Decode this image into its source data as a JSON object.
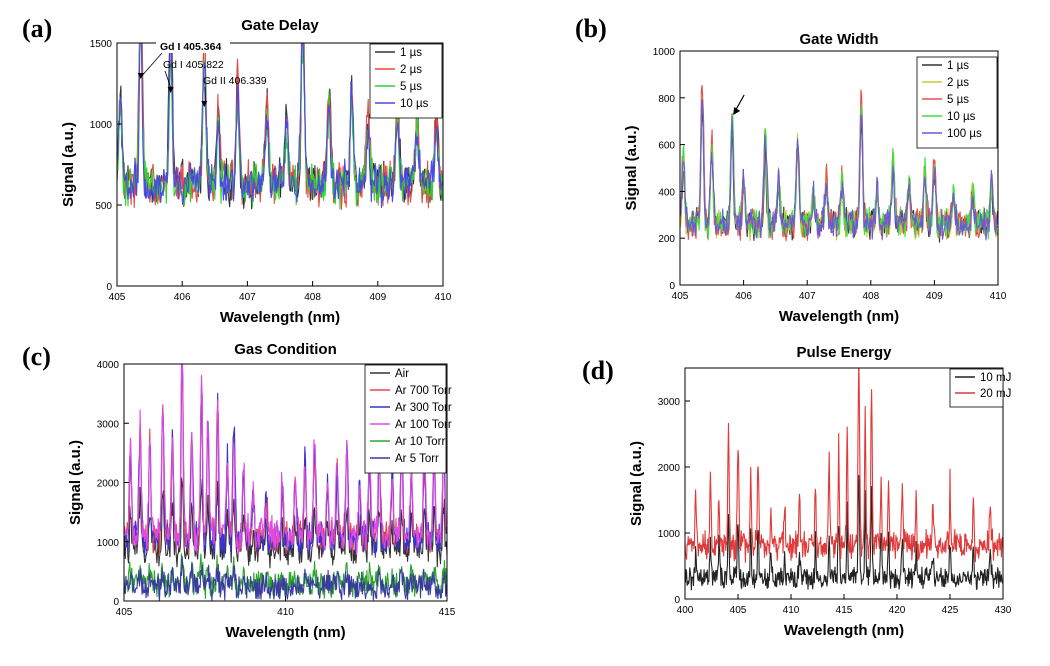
{
  "chart_data": [
    {
      "type": "line",
      "panel": "(a)",
      "title": "Gate Delay",
      "xlabel": "Wavelength (nm)",
      "ylabel": "Signal (a.u.)",
      "xlim": [
        405,
        410
      ],
      "ylim": [
        0,
        1500
      ],
      "xticks": [
        405,
        406,
        407,
        408,
        409,
        410
      ],
      "yticks": [
        0,
        500,
        1000,
        1500
      ],
      "baseline_norm": 0.42,
      "noise": 0.045,
      "width": 0.035,
      "sample_step": 0.012,
      "legend_position": "top-right",
      "peaks": [
        405.05,
        405.364,
        405.822,
        406.339,
        406.55,
        406.85,
        407.3,
        407.6,
        407.85,
        408.25,
        408.6,
        408.85,
        409.3,
        409.6,
        409.9
      ],
      "peak_amps": [
        0.4,
        0.9,
        0.72,
        0.65,
        0.3,
        0.45,
        0.35,
        0.3,
        0.82,
        0.4,
        0.45,
        0.3,
        0.35,
        0.32,
        0.32
      ],
      "series": [
        {
          "name": "1 µs",
          "color": "#333333",
          "scale": 1.0
        },
        {
          "name": "2 µs",
          "color": "#e8483f",
          "scale": 0.95
        },
        {
          "name": "5 µs",
          "color": "#2fd22f",
          "scale": 0.72
        },
        {
          "name": "10 µs",
          "color": "#4a4ae6",
          "scale": 0.8
        }
      ],
      "annotations": [
        {
          "text": "Gd I 405.364",
          "x": 405.364
        },
        {
          "text": "Gd I 405.822",
          "x": 405.822
        },
        {
          "text": "Gd II 406.339",
          "x": 406.339
        }
      ]
    },
    {
      "type": "line",
      "panel": "(b)",
      "title": "Gate Width",
      "xlabel": "Wavelength (nm)",
      "ylabel": "Signal (a.u.)",
      "xlim": [
        405,
        410
      ],
      "ylim": [
        0,
        1000
      ],
      "xticks": [
        405,
        406,
        407,
        408,
        409,
        410
      ],
      "yticks": [
        0,
        200,
        400,
        600,
        800,
        1000
      ],
      "baseline_norm": 0.26,
      "noise": 0.04,
      "width": 0.03,
      "sample_step": 0.012,
      "legend_position": "top-right",
      "peaks": [
        405.05,
        405.35,
        405.5,
        405.82,
        406.0,
        406.34,
        406.55,
        406.85,
        407.1,
        407.3,
        407.55,
        407.85,
        408.1,
        408.35,
        408.6,
        408.85,
        409.0,
        409.3,
        409.6,
        409.9
      ],
      "peak_amps": [
        0.3,
        0.6,
        0.35,
        0.48,
        0.2,
        0.4,
        0.2,
        0.38,
        0.15,
        0.2,
        0.2,
        0.55,
        0.15,
        0.3,
        0.2,
        0.25,
        0.28,
        0.14,
        0.13,
        0.2
      ],
      "series": [
        {
          "name": "1 µs",
          "color": "#333333",
          "scale": 0.85
        },
        {
          "name": "2 µs",
          "color": "#c9c93a",
          "scale": 0.95
        },
        {
          "name": "5 µs",
          "color": "#ee4e4e",
          "scale": 1.02
        },
        {
          "name": "10 µs",
          "color": "#3ee03e",
          "scale": 1.0
        },
        {
          "name": "100 µs",
          "color": "#6a5ad6",
          "scale": 0.93
        }
      ],
      "arrow_at": 405.82
    },
    {
      "type": "line",
      "panel": "(c)",
      "title": "Gas Condition",
      "xlabel": "Wavelength (nm)",
      "ylabel": "Signal (a.u.)",
      "xlim": [
        405,
        415
      ],
      "ylim": [
        0,
        4000
      ],
      "xticks": [
        405,
        410,
        415
      ],
      "yticks": [
        0,
        1000,
        2000,
        3000,
        4000
      ],
      "noise": 0.05,
      "width": 0.045,
      "sample_step": 0.02,
      "legend_position": "top-right",
      "peaks": [
        405.2,
        405.5,
        405.8,
        406.2,
        406.5,
        406.8,
        407.1,
        407.4,
        407.6,
        407.9,
        408.2,
        408.4,
        408.7,
        409.0,
        409.4,
        409.9,
        410.3,
        410.6,
        410.9,
        411.3,
        411.6,
        411.9,
        412.3,
        412.6,
        412.9,
        413.3,
        413.6,
        413.9,
        414.3,
        414.6,
        414.9
      ],
      "peak_amps": [
        0.45,
        0.55,
        0.5,
        0.65,
        0.5,
        0.95,
        0.5,
        0.8,
        0.55,
        0.7,
        0.4,
        0.55,
        0.35,
        0.2,
        0.2,
        0.25,
        0.3,
        0.4,
        0.45,
        0.3,
        0.35,
        0.45,
        0.3,
        0.4,
        0.45,
        0.35,
        0.45,
        0.35,
        0.4,
        0.45,
        0.5
      ],
      "series": [
        {
          "name": "Air",
          "color": "#333333",
          "scale": 0.35,
          "base": 0.22
        },
        {
          "name": "Ar 700 Torr",
          "color": "#e04848",
          "scale": 0.82,
          "base": 0.27
        },
        {
          "name": "Ar 300 Torr",
          "color": "#3434d8",
          "scale": 0.9,
          "base": 0.26
        },
        {
          "name": "Ar 100 Torr",
          "color": "#e04ae0",
          "scale": 0.85,
          "base": 0.28
        },
        {
          "name": "Ar  10 Torr",
          "color": "#2aa52a",
          "scale": 0.12,
          "base": 0.07
        },
        {
          "name": "Ar   5 Torr",
          "color": "#3a3aa0",
          "scale": 0.1,
          "base": 0.06
        }
      ]
    },
    {
      "type": "line",
      "panel": "(d)",
      "title": "Pulse Energy",
      "xlabel": "Wavelength (nm)",
      "ylabel": "Signal (a.u.)",
      "xlim": [
        400,
        430
      ],
      "ylim": [
        0,
        3500
      ],
      "xticks": [
        400,
        405,
        410,
        415,
        420,
        425,
        430
      ],
      "yticks": [
        0,
        1000,
        2000,
        3000
      ],
      "noise": 0.04,
      "width": 0.09,
      "sample_step": 0.05,
      "legend_position": "top-right",
      "peaks": [
        401.0,
        402.4,
        403.2,
        404.1,
        405.0,
        406.2,
        406.9,
        408.1,
        409.4,
        410.8,
        412.3,
        413.6,
        414.5,
        415.3,
        416.4,
        417.0,
        417.6,
        418.5,
        419.2,
        420.5,
        421.8,
        423.4,
        425.0,
        427.2,
        428.8
      ],
      "peak_amps": [
        0.22,
        0.3,
        0.25,
        0.55,
        0.45,
        0.3,
        0.38,
        0.2,
        0.18,
        0.2,
        0.3,
        0.35,
        0.45,
        0.55,
        0.85,
        0.6,
        0.7,
        0.35,
        0.3,
        0.3,
        0.25,
        0.2,
        0.28,
        0.2,
        0.2
      ],
      "series": [
        {
          "name": "10 mJ",
          "color": "#222222",
          "scale": 0.55,
          "base": 0.09
        },
        {
          "name": "20 mJ",
          "color": "#e03a3a",
          "scale": 1.0,
          "base": 0.23
        }
      ]
    }
  ]
}
